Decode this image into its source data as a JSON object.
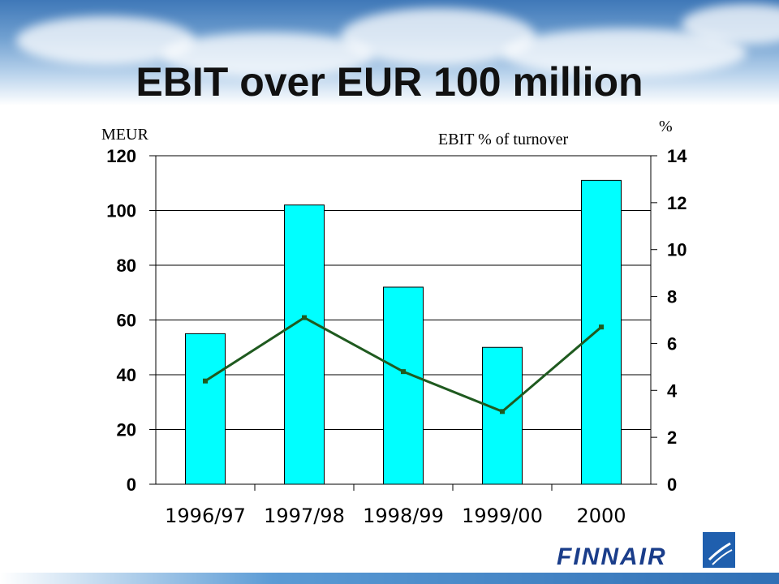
{
  "title": "EBIT over EUR 100 million",
  "logo": {
    "text": "FINNAIR",
    "icon": "finnair-logo-icon"
  },
  "colors": {
    "bar": "#00ffff",
    "line": "#1f5a1f",
    "marker": "#1f5a1f",
    "grid": "#000000"
  },
  "chart_data": {
    "type": "bar",
    "categories": [
      "1996/97",
      "1997/98",
      "1998/99",
      "1999/00",
      "2000"
    ],
    "series": [
      {
        "type": "bar",
        "axis": "left",
        "values": [
          55,
          102,
          72,
          50,
          111
        ]
      },
      {
        "type": "line",
        "axis": "right",
        "name": "EBIT % of turnover",
        "values": [
          4.4,
          7.1,
          4.8,
          3.1,
          6.7
        ]
      }
    ],
    "left_axis": {
      "label": "MEUR",
      "ylim": [
        0,
        120
      ],
      "ticks": [
        0,
        20,
        40,
        60,
        80,
        100,
        120
      ]
    },
    "right_axis": {
      "label": "%",
      "ylim": [
        0,
        14
      ],
      "ticks": [
        0,
        2,
        4,
        6,
        8,
        10,
        12,
        14
      ]
    },
    "grid": true,
    "legend_position": "top-right"
  }
}
